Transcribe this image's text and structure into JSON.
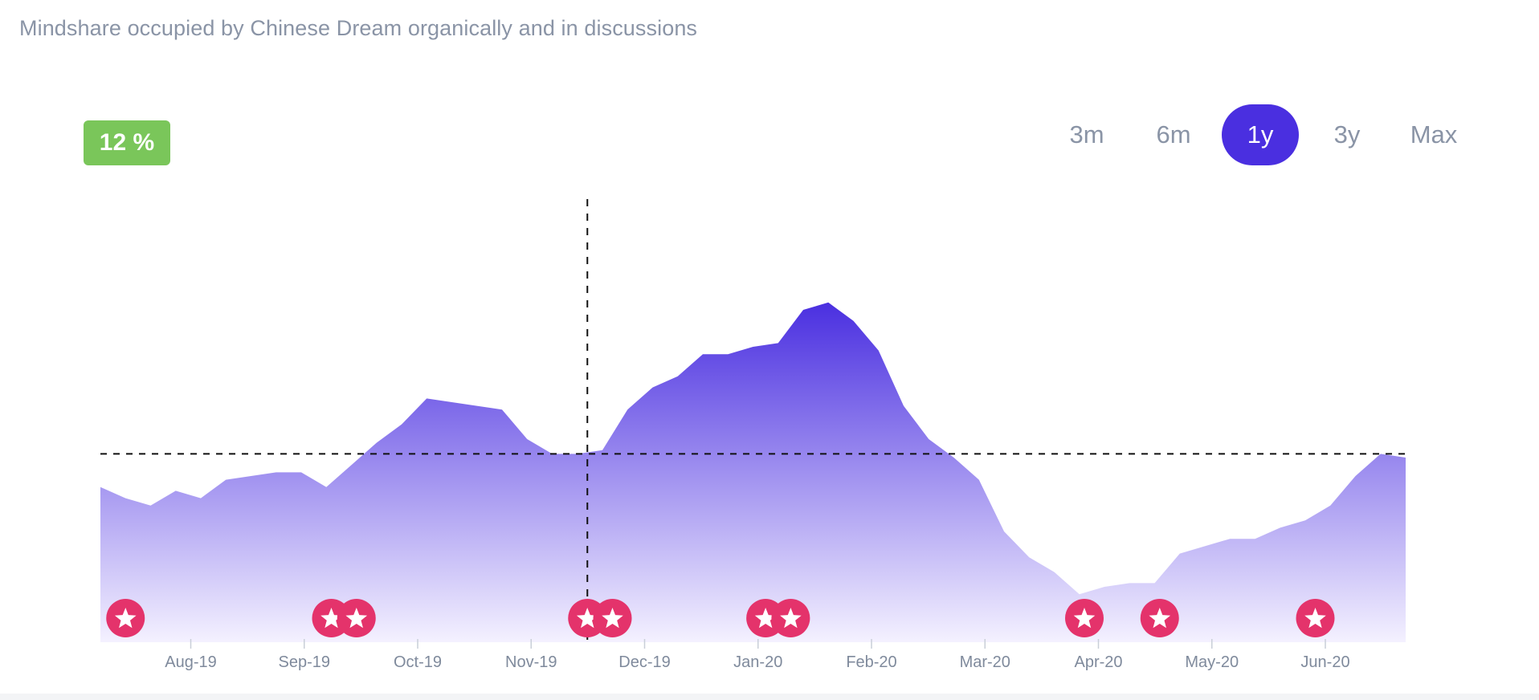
{
  "title": "Mindshare occupied by Chinese Dream organically and in discussions",
  "badge": {
    "label": "12 %",
    "color": "#7ac65a"
  },
  "range_selector": {
    "options": [
      {
        "label": "3m",
        "active": false
      },
      {
        "label": "6m",
        "active": false
      },
      {
        "label": "1y",
        "active": true
      },
      {
        "label": "3y",
        "active": false
      },
      {
        "label": "Max",
        "active": false
      }
    ],
    "active_color": "#4a2fe0"
  },
  "chart_data": {
    "type": "area",
    "x_tick_labels": [
      "Aug-19",
      "Sep-19",
      "Oct-19",
      "Nov-19",
      "Dec-19",
      "Jan-20",
      "Feb-20",
      "Mar-20",
      "Apr-20",
      "May-20",
      "Jun-20"
    ],
    "x_range": [
      0,
      52
    ],
    "y_range": [
      0,
      100
    ],
    "values": [
      42,
      39,
      37,
      41,
      39,
      44,
      45,
      46,
      46,
      42,
      48,
      54,
      59,
      66,
      65,
      64,
      63,
      55,
      51,
      51,
      52,
      63,
      69,
      72,
      78,
      78,
      80,
      81,
      90,
      92,
      87,
      79,
      64,
      55,
      50,
      44,
      30,
      23,
      19,
      13,
      15,
      16,
      16,
      24,
      26,
      28,
      28,
      31,
      33,
      37,
      45,
      51,
      50
    ],
    "reference_line": 51,
    "crosshair_x": 19.4,
    "event_markers": [
      1,
      9.2,
      10.2,
      19.4,
      20.4,
      26.5,
      27.5,
      39.2,
      42.2,
      48.4
    ],
    "colors": {
      "top": "#4a2fe0",
      "bottom": "#f4f1ff",
      "marker": "#e4336b"
    },
    "grid": false
  }
}
